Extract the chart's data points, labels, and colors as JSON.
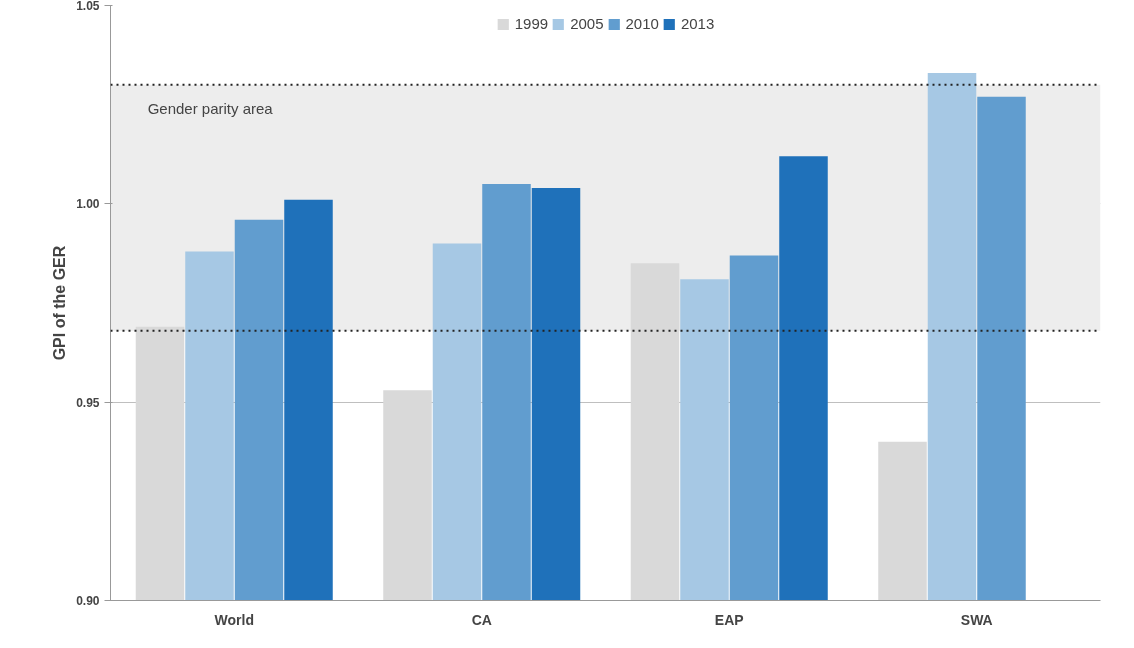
{
  "chart_data": {
    "type": "bar",
    "ylabel": "GPI of the GER",
    "categories": [
      "World",
      "CA",
      "EAP",
      "SWA"
    ],
    "series": [
      {
        "name": "1999",
        "color": "#d9d9d9",
        "values": [
          0.969,
          0.953,
          0.985,
          0.94
        ]
      },
      {
        "name": "2005",
        "color": "#a6c8e4",
        "values": [
          0.988,
          0.99,
          0.981,
          1.033
        ]
      },
      {
        "name": "2010",
        "color": "#619dcf",
        "values": [
          0.996,
          1.005,
          0.987,
          1.027
        ]
      },
      {
        "name": "2013",
        "color": "#1f71ba",
        "values": [
          1.001,
          1.004,
          1.012,
          null
        ]
      }
    ],
    "ylim": [
      0.9,
      1.05
    ],
    "yticks": [
      {
        "value": 0.9,
        "label": "0.90"
      },
      {
        "value": 0.95,
        "label": "0.95"
      },
      {
        "value": 1.0,
        "label": "1.00"
      },
      {
        "value": 1.05,
        "label": "1.05"
      }
    ],
    "bands": [
      {
        "axis": "y",
        "from": 0.968,
        "to": 1.03,
        "label": "Gender parity area",
        "color": "#ededed"
      }
    ],
    "ref_lines": [
      {
        "axis": "y",
        "value": 0.968,
        "color": "#222222",
        "line_style": "dotted"
      },
      {
        "axis": "y",
        "value": 1.03,
        "color": "#222222",
        "line_style": "dotted"
      }
    ],
    "grid": "y",
    "legend": "top"
  }
}
